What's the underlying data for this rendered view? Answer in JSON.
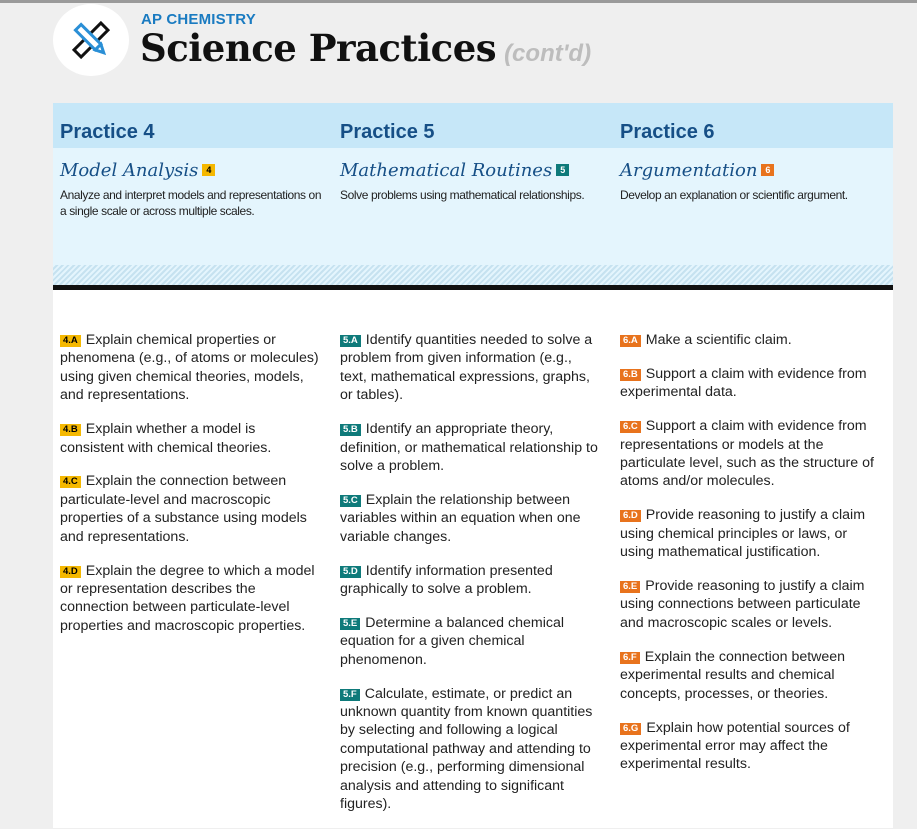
{
  "header": {
    "subject": "AP CHEMISTRY",
    "title": "Science Practices",
    "title_suffix": "(cont'd)",
    "logo_icon": "pencil-ruler-icon"
  },
  "colors": {
    "practice4": "#f5b800",
    "practice5": "#0e7a7a",
    "practice6": "#e8731d",
    "heading": "#164f86",
    "subject": "#1a7bc1"
  },
  "practices": [
    {
      "heading": "Practice 4",
      "name": "Model Analysis",
      "badge": "4",
      "description": "Analyze and interpret models and representations on a single scale or across multiple scales.",
      "items": [
        {
          "code": "4.A",
          "text": "Explain chemical properties or phenomena (e.g., of atoms or molecules) using given chemical theories, models, and representations."
        },
        {
          "code": "4.B",
          "text": "Explain whether a model is consistent with chemical theories."
        },
        {
          "code": "4.C",
          "text": "Explain the connection between particulate-level and macroscopic properties of a substance using models and representations."
        },
        {
          "code": "4.D",
          "text": "Explain the degree to which a model or representation describes the connection between particulate-level properties and macroscopic properties."
        }
      ]
    },
    {
      "heading": "Practice 5",
      "name": "Mathematical Routines",
      "badge": "5",
      "description": "Solve problems using mathematical relationships.",
      "items": [
        {
          "code": "5.A",
          "text": "Identify quantities needed to solve a problem from given information (e.g., text, mathematical expressions, graphs, or tables)."
        },
        {
          "code": "5.B",
          "text": "Identify an appropriate theory, definition, or mathematical relationship to solve a problem."
        },
        {
          "code": "5.C",
          "text": "Explain the relationship between variables within an equation when one variable changes."
        },
        {
          "code": "5.D",
          "text": "Identify information presented graphically to solve a problem."
        },
        {
          "code": "5.E",
          "text": "Determine a balanced chemical equation for a given chemical phenomenon."
        },
        {
          "code": "5.F",
          "text": "Calculate, estimate, or predict an unknown quantity from known quantities by selecting and following a logical computational pathway and attending to precision (e.g., performing dimensional analysis and attending to significant figures)."
        }
      ]
    },
    {
      "heading": "Practice 6",
      "name": "Argumentation",
      "badge": "6",
      "description": "Develop an explanation or scientific argument.",
      "items": [
        {
          "code": "6.A",
          "text": "Make a scientific claim."
        },
        {
          "code": "6.B",
          "text": "Support a claim with evidence from experimental data."
        },
        {
          "code": "6.C",
          "text": "Support a claim with evidence from representations or models at the particulate level, such as the structure of atoms and/or molecules."
        },
        {
          "code": "6.D",
          "text": "Provide reasoning to justify a claim using chemical principles or laws, or using mathematical justification."
        },
        {
          "code": "6.E",
          "text": "Provide reasoning to justify a claim using connections between particulate and macroscopic scales or levels."
        },
        {
          "code": "6.F",
          "text": "Explain the connection between experimental results and chemical concepts, processes, or theories."
        },
        {
          "code": "6.G",
          "text": "Explain how potential sources of experimental error may affect the experimental results."
        }
      ]
    }
  ]
}
